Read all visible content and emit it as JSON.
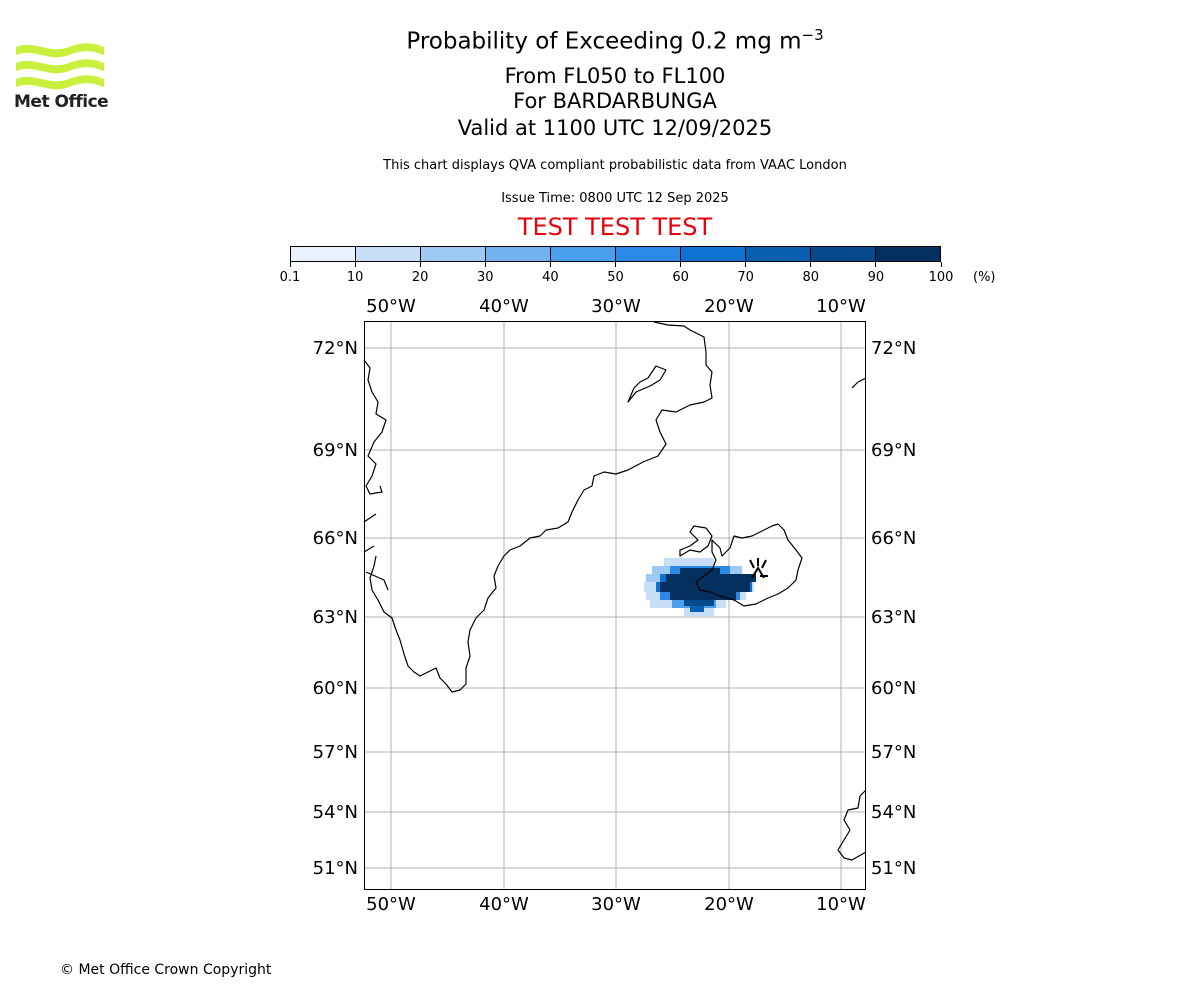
{
  "header": {
    "title_main": "Probability of Exceeding 0.2 mg m",
    "title_sup": "−3",
    "line2": "From FL050 to FL100",
    "line3": "For BARDARBUNGA",
    "line4": "Valid at 1100 UTC 12/09/2025",
    "description": "This chart displays QVA compliant probabilistic data from VAAC London",
    "issue_time": "Issue Time: 0800 UTC 12 Sep 2025",
    "test_banner": "TEST TEST TEST"
  },
  "logo": {
    "text": "Met Office",
    "color": "#c8f03c"
  },
  "colorbar": {
    "ticks": [
      "0.1",
      "10",
      "20",
      "30",
      "40",
      "50",
      "60",
      "70",
      "80",
      "90",
      "100"
    ],
    "unit": "(%)",
    "colors": [
      "#e9f2fc",
      "#c7dff6",
      "#9ccaf3",
      "#72b2ef",
      "#4aa0ec",
      "#2a8ae6",
      "#0d72d1",
      "#0a5eb2",
      "#074a8c",
      "#052f5e"
    ]
  },
  "map": {
    "lon_labels": [
      "50°W",
      "40°W",
      "30°W",
      "20°W",
      "10°W"
    ],
    "lat_labels": [
      "72°N",
      "69°N",
      "66°N",
      "63°N",
      "60°N",
      "57°N",
      "54°N",
      "51°N"
    ],
    "volcano_icon": "volcano-icon"
  },
  "footer": {
    "copyright": "© Met Office Crown Copyright"
  }
}
